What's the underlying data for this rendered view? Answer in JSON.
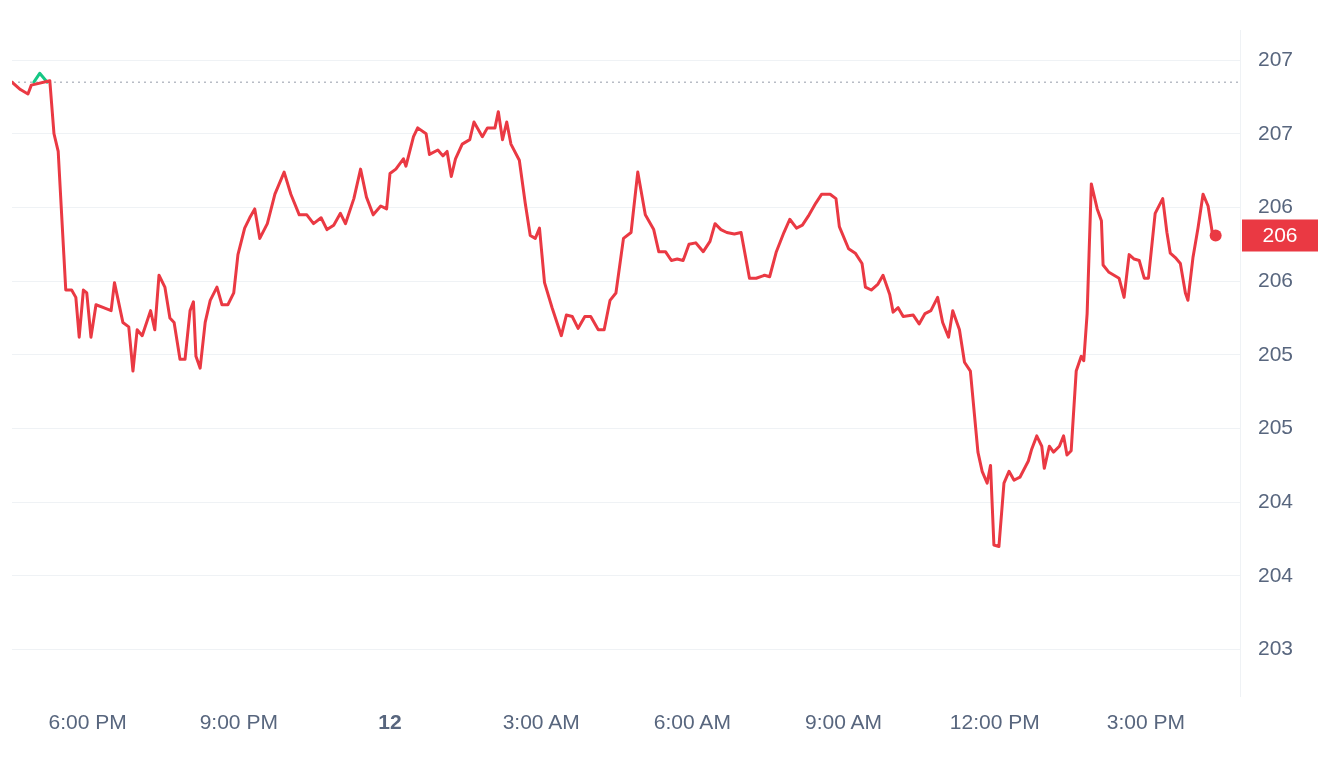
{
  "chart_data": {
    "type": "line",
    "xlim": [
      "--01-11T16:30",
      "--01-12T16:52"
    ],
    "ylim": [
      202.68,
      207.2
    ],
    "xticks": [
      {
        "value": "--01-11T18:00",
        "label": "6:00 PM"
      },
      {
        "value": "--01-11T21:00",
        "label": "9:00 PM"
      },
      {
        "value": "--01-12T00:00",
        "label": "12"
      },
      {
        "value": "--01-12T03:00",
        "label": "3:00 AM"
      },
      {
        "value": "--01-12T06:00",
        "label": "6:00 AM"
      },
      {
        "value": "--01-12T09:00",
        "label": "9:00 AM"
      },
      {
        "value": "--01-12T12:00",
        "label": "12:00 PM"
      },
      {
        "value": "--01-12T15:00",
        "label": "3:00 PM"
      }
    ],
    "yticks": [
      207,
      {
        "value": 206.5,
        "label": "207"
      },
      206,
      {
        "value": 205.5,
        "label": "206"
      },
      205,
      {
        "value": 204.5,
        "label": "205"
      },
      204,
      {
        "value": 203.5,
        "label": "204"
      },
      203
    ],
    "grid": "y",
    "legend": false,
    "line_style": "solid",
    "marker": "none",
    "ref_lines": [
      {
        "axis": "y",
        "value": 206.85,
        "line_style": "dotted",
        "color": "#b8bcc5"
      }
    ],
    "annotations": [
      {
        "text": "206",
        "x": "--01-12T16:23",
        "y": 205.81
      }
    ],
    "series": [
      {
        "color": "#ea3943",
        "x": [
          "--01-11T16:30",
          "--01-11T16:40",
          "--01-11T16:49",
          "--01-11T16:53",
          "--01-11T17:15",
          "--01-11T17:20",
          "--01-11T17:25",
          "--01-11T17:34",
          "--01-11T17:41",
          "--01-11T17:46",
          "--01-11T17:50",
          "--01-11T17:55",
          "--01-11T17:59",
          "--01-11T18:04",
          "--01-11T18:10",
          "--01-11T18:19",
          "--01-11T18:28",
          "--01-11T18:32",
          "--01-11T18:42",
          "--01-11T18:49",
          "--01-11T18:54",
          "--01-11T18:59",
          "--01-11T19:05",
          "--01-11T19:15",
          "--01-11T19:20",
          "--01-11T19:25",
          "--01-11T19:32",
          "--01-11T19:38",
          "--01-11T19:43",
          "--01-11T19:50",
          "--01-11T19:56",
          "--01-11T20:02",
          "--01-11T20:06",
          "--01-11T20:09",
          "--01-11T20:14",
          "--01-11T20:20",
          "--01-11T20:26",
          "--01-11T20:34",
          "--01-11T20:40",
          "--01-11T20:47",
          "--01-11T20:54",
          "--01-11T20:59",
          "--01-11T21:07",
          "--01-11T21:13",
          "--01-11T21:19",
          "--01-11T21:25",
          "--01-11T21:34",
          "--01-11T21:43",
          "--01-11T21:54",
          "--01-11T22:02",
          "--01-11T22:12",
          "--01-11T22:21",
          "--01-11T22:29",
          "--01-11T22:38",
          "--01-11T22:45",
          "--01-11T22:53",
          "--01-11T23:01",
          "--01-11T23:07",
          "--01-11T23:17",
          "--01-11T23:25",
          "--01-11T23:32",
          "--01-11T23:40",
          "--01-11T23:49",
          "--01-11T23:56",
          "--01-12T00:00",
          "--01-12T00:07",
          "--01-12T00:16",
          "--01-12T00:19",
          "--01-12T00:28",
          "--01-12T00:33",
          "--01-12T00:43",
          "--01-12T00:47",
          "--01-12T00:57",
          "--01-12T01:03",
          "--01-12T01:08",
          "--01-12T01:13",
          "--01-12T01:18",
          "--01-12T01:26",
          "--01-12T01:35",
          "--01-12T01:40",
          "--01-12T01:50",
          "--01-12T01:56",
          "--01-12T02:05",
          "--01-12T02:09",
          "--01-12T02:14",
          "--01-12T02:19",
          "--01-12T02:24",
          "--01-12T02:34",
          "--01-12T02:41",
          "--01-12T02:47",
          "--01-12T02:53",
          "--01-12T02:58",
          "--01-12T03:04",
          "--01-12T03:13",
          "--01-12T03:24",
          "--01-12T03:30",
          "--01-12T03:37",
          "--01-12T03:44",
          "--01-12T03:52",
          "--01-12T03:59",
          "--01-12T04:08",
          "--01-12T04:15",
          "--01-12T04:22",
          "--01-12T04:29",
          "--01-12T04:38",
          "--01-12T04:47",
          "--01-12T04:55",
          "--01-12T05:04",
          "--01-12T05:14",
          "--01-12T05:20",
          "--01-12T05:28",
          "--01-12T05:35",
          "--01-12T05:42",
          "--01-12T05:49",
          "--01-12T05:56",
          "--01-12T06:04",
          "--01-12T06:13",
          "--01-12T06:21",
          "--01-12T06:27",
          "--01-12T06:34",
          "--01-12T06:41",
          "--01-12T06:50",
          "--01-12T06:58",
          "--01-12T07:08",
          "--01-12T07:16",
          "--01-12T07:26",
          "--01-12T07:32",
          "--01-12T07:40",
          "--01-12T07:49",
          "--01-12T07:56",
          "--01-12T08:04",
          "--01-12T08:11",
          "--01-12T08:19",
          "--01-12T08:27",
          "--01-12T08:34",
          "--01-12T08:44",
          "--01-12T08:51",
          "--01-12T08:55",
          "--01-12T09:06",
          "--01-12T09:14",
          "--01-12T09:22",
          "--01-12T09:26",
          "--01-12T09:33",
          "--01-12T09:41",
          "--01-12T09:47",
          "--01-12T09:55",
          "--01-12T09:59",
          "--01-12T10:05",
          "--01-12T10:11",
          "--01-12T10:23",
          "--01-12T10:30",
          "--01-12T10:37",
          "--01-12T10:44",
          "--01-12T10:52",
          "--01-12T10:58",
          "--01-12T11:05",
          "--01-12T11:10",
          "--01-12T11:18",
          "--01-12T11:24",
          "--01-12T11:31",
          "--01-12T11:40",
          "--01-12T11:45",
          "--01-12T11:51",
          "--01-12T11:55",
          "--01-12T11:59",
          "--01-12T12:05",
          "--01-12T12:11",
          "--01-12T12:17",
          "--01-12T12:23",
          "--01-12T12:30",
          "--01-12T12:40",
          "--01-12T12:44",
          "--01-12T12:50",
          "--01-12T12:56",
          "--01-12T12:59",
          "--01-12T13:05",
          "--01-12T13:10",
          "--01-12T13:17",
          "--01-12T13:22",
          "--01-12T13:26",
          "--01-12T13:31",
          "--01-12T13:37",
          "--01-12T13:43",
          "--01-12T13:46",
          "--01-12T13:50",
          "--01-12T13:55",
          "--01-12T14:02",
          "--01-12T14:07",
          "--01-12T14:09",
          "--01-12T14:16",
          "--01-12T14:22",
          "--01-12T14:28",
          "--01-12T14:34",
          "--01-12T14:40",
          "--01-12T14:46",
          "--01-12T14:52",
          "--01-12T14:58",
          "--01-12T15:03",
          "--01-12T15:11",
          "--01-12T15:20",
          "--01-12T15:25",
          "--01-12T15:29",
          "--01-12T15:35",
          "--01-12T15:41",
          "--01-12T15:47",
          "--01-12T15:50",
          "--01-12T15:56",
          "--01-12T16:02",
          "--01-12T16:08",
          "--01-12T16:14",
          "--01-12T16:19",
          "--01-12T16:23"
        ],
        "values": [
          206.85,
          206.8,
          206.77,
          206.83,
          206.86,
          206.5,
          206.38,
          205.44,
          205.44,
          205.39,
          205.12,
          205.44,
          205.42,
          205.12,
          205.34,
          205.32,
          205.3,
          205.49,
          205.22,
          205.19,
          204.89,
          205.17,
          205.13,
          205.3,
          205.17,
          205.54,
          205.46,
          205.25,
          205.22,
          204.97,
          204.97,
          205.3,
          205.36,
          204.99,
          204.91,
          205.22,
          205.37,
          205.46,
          205.34,
          205.34,
          205.42,
          205.68,
          205.86,
          205.93,
          205.99,
          205.79,
          205.89,
          206.09,
          206.24,
          206.09,
          205.95,
          205.95,
          205.89,
          205.93,
          205.85,
          205.88,
          205.96,
          205.89,
          206.06,
          206.26,
          206.07,
          205.95,
          206.01,
          205.99,
          206.23,
          206.26,
          206.33,
          206.28,
          206.48,
          206.54,
          206.5,
          206.36,
          206.39,
          206.35,
          206.38,
          206.21,
          206.33,
          206.43,
          206.46,
          206.58,
          206.48,
          206.54,
          206.54,
          206.65,
          206.46,
          206.58,
          206.43,
          206.32,
          206.03,
          205.81,
          205.79,
          205.86,
          205.49,
          205.32,
          205.13,
          205.27,
          205.26,
          205.18,
          205.26,
          205.26,
          205.17,
          205.17,
          205.37,
          205.42,
          205.79,
          205.83,
          206.24,
          205.95,
          205.85,
          205.7,
          205.7,
          205.64,
          205.65,
          205.64,
          205.75,
          205.76,
          205.7,
          205.77,
          205.89,
          205.85,
          205.83,
          205.82,
          205.83,
          205.52,
          205.52,
          205.54,
          205.53,
          205.7,
          205.83,
          205.92,
          205.86,
          205.88,
          205.95,
          206.03,
          206.09,
          206.09,
          206.06,
          205.87,
          205.72,
          205.69,
          205.62,
          205.46,
          205.44,
          205.48,
          205.54,
          205.41,
          205.29,
          205.32,
          205.26,
          205.27,
          205.21,
          205.28,
          205.3,
          205.39,
          205.22,
          205.12,
          205.3,
          205.17,
          204.95,
          204.89,
          204.34,
          204.21,
          204.13,
          204.25,
          203.71,
          203.7,
          204.13,
          204.21,
          204.15,
          204.17,
          204.28,
          204.36,
          204.45,
          204.38,
          204.23,
          204.38,
          204.34,
          204.38,
          204.45,
          204.32,
          204.35,
          204.89,
          204.99,
          204.96,
          205.28,
          206.16,
          205.99,
          205.91,
          205.61,
          205.56,
          205.54,
          205.52,
          205.39,
          205.68,
          205.65,
          205.64,
          205.52,
          205.52,
          205.96,
          206.06,
          205.83,
          205.69,
          205.66,
          205.62,
          205.42,
          205.37,
          205.66,
          205.86,
          206.09,
          206.01,
          205.83,
          205.81
        ]
      },
      {
        "color": "#16c784",
        "x": [
          "--01-11T16:56",
          "--01-11T17:03",
          "--01-11T17:12"
        ],
        "values": [
          206.85,
          206.91,
          206.85
        ]
      }
    ]
  }
}
